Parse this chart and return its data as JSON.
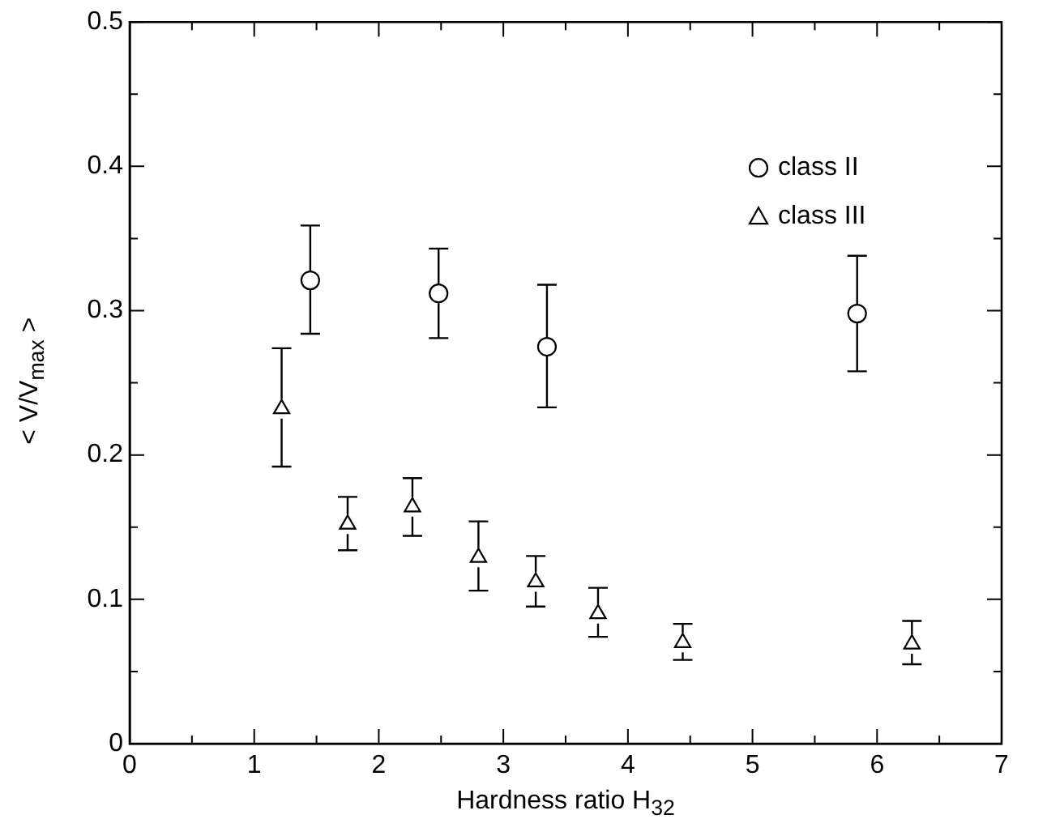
{
  "chart_data": {
    "type": "scatter",
    "xlabel": "Hardness ratio H$_{32}$",
    "ylabel": "< V/V$_{max}$ >",
    "xlim": [
      0,
      7
    ],
    "ylim": [
      0,
      0.5
    ],
    "xticks": [
      0,
      {
        "value": 0.5,
        "label": null
      },
      1,
      {
        "value": 1.5,
        "label": null
      },
      2,
      {
        "value": 2.5,
        "label": null
      },
      3,
      {
        "value": 3.5,
        "label": null
      },
      4,
      {
        "value": 4.5,
        "label": null
      },
      5,
      {
        "value": 5.5,
        "label": null
      },
      6,
      {
        "value": 6.5,
        "label": null
      },
      7
    ],
    "yticks": [
      0,
      {
        "value": 0.05,
        "label": null
      },
      0.1,
      {
        "value": 0.15,
        "label": null
      },
      0.2,
      {
        "value": 0.25,
        "label": null
      },
      0.3,
      {
        "value": 0.35,
        "label": null
      },
      0.4,
      {
        "value": 0.45,
        "label": null
      },
      0.5
    ],
    "grid": false,
    "legend": "top right",
    "series": [
      {
        "name": "class II",
        "color": "#000000",
        "marker": "circle",
        "x": [
          1.45,
          2.48,
          3.35,
          5.84
        ],
        "values": [
          0.321,
          0.312,
          0.275,
          0.298
        ],
        "errors": [
          [
            0.284,
            0.359
          ],
          [
            0.281,
            0.343
          ],
          [
            0.233,
            0.318
          ],
          [
            0.258,
            0.338
          ]
        ]
      },
      {
        "name": "class III",
        "color": "#000000",
        "marker": "triangle",
        "x": [
          1.22,
          1.75,
          2.27,
          2.8,
          3.26,
          3.76,
          4.44,
          6.28
        ],
        "values": [
          0.232,
          0.152,
          0.164,
          0.129,
          0.112,
          0.09,
          0.07,
          0.069
        ],
        "errors": [
          [
            0.192,
            0.274
          ],
          [
            0.134,
            0.171
          ],
          [
            0.144,
            0.184
          ],
          [
            0.106,
            0.154
          ],
          [
            0.095,
            0.13
          ],
          [
            0.074,
            0.108
          ],
          [
            0.058,
            0.083
          ],
          [
            0.055,
            0.085
          ]
        ]
      }
    ]
  }
}
